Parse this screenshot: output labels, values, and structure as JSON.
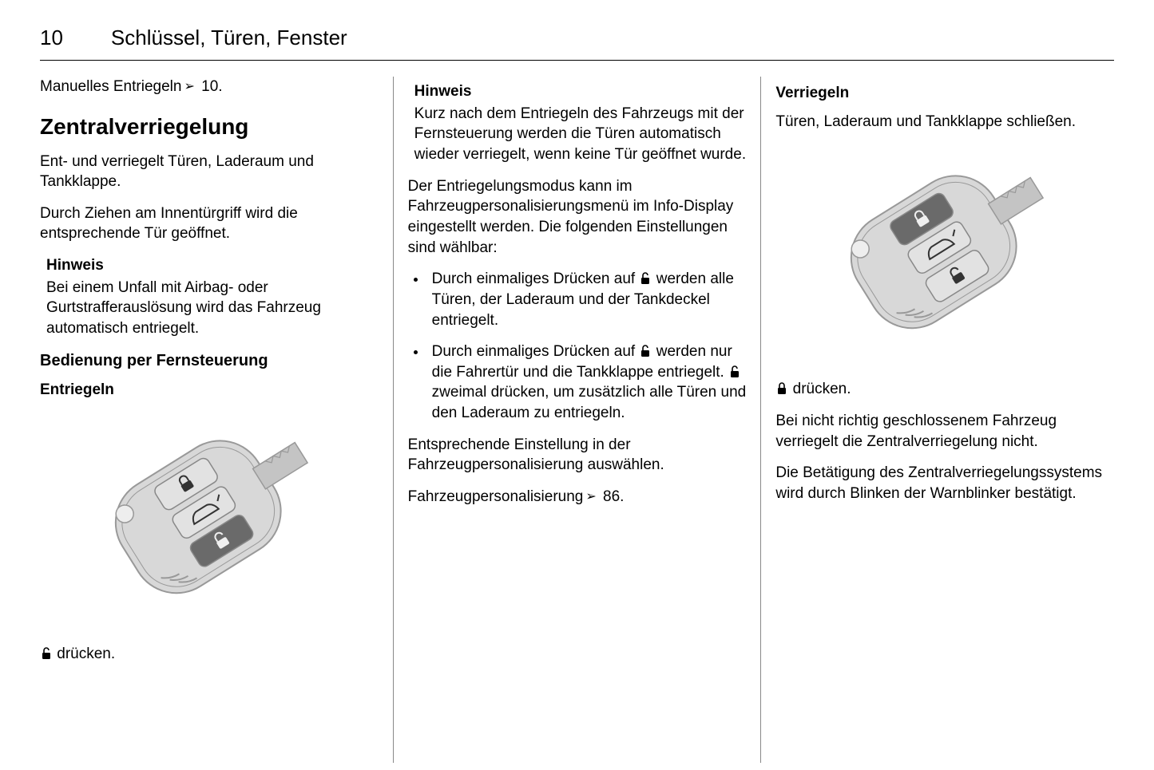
{
  "page_number": "10",
  "chapter_title": "Schlüssel, Türen, Fenster",
  "col1": {
    "manual_unlock": "Manuelles Entriegeln",
    "manual_unlock_ref": " 10.",
    "h2_central": "Zentralverriegelung",
    "p1": "Ent- und verriegelt Türen, Laderaum und Tankklappe.",
    "p2": "Durch Ziehen am Innentürgriff wird die entsprechende Tür geöffnet.",
    "hinweis_title": "Hinweis",
    "hinweis_body": "Bei einem Unfall mit Airbag- oder Gurtstrafferauslösung wird das Fahrzeug automatisch entriegelt.",
    "h3_remote": "Bedienung per Fernsteuerung",
    "h4_unlock": "Entriegeln",
    "press_unlock": " drücken."
  },
  "col2": {
    "hinweis_title": "Hinweis",
    "hinweis_body": "Kurz nach dem Entriegeln des Fahrzeugs mit der Fernsteuerung werden die Türen automatisch wieder verriegelt, wenn keine Tür geöffnet wurde.",
    "p1": "Der Entriegelungsmodus kann im Fahrzeugpersonalisierungsmenü im Info-Display eingestellt werden. Die folgenden Einstellungen sind wählbar:",
    "li1a": "Durch einmaliges Drücken auf ",
    "li1b": " werden alle Türen, der Laderaum und der Tankdeckel entriegelt.",
    "li2a": "Durch einmaliges Drücken auf ",
    "li2b": " werden nur die Fahrertür und die Tankklappe entriegelt. ",
    "li2c": " zweimal drücken, um zusätzlich alle Türen und den Laderaum zu entriegeln.",
    "p2": "Entsprechende Einstellung in der Fahrzeugpersonalisierung auswählen.",
    "p3a": "Fahrzeugpersonalisierung",
    "p3b": " 86."
  },
  "col3": {
    "h4_lock": "Verriegeln",
    "p1": "Türen, Laderaum und Tankklappe schließen.",
    "press_lock": " drücken.",
    "p2": "Bei nicht richtig geschlossenem Fahrzeug verriegelt die Zentralverriegelung nicht.",
    "p3": "Die Betätigung des Zentralverriegelungssystems wird durch Blinken der Warnblinker bestätigt."
  },
  "key_svg": {
    "body_fill": "#d8d8d8",
    "body_stroke": "#999999",
    "button_stroke": "#888888",
    "button_fill_light": "#e2e2e2",
    "button_fill_dark": "#6a6a6a",
    "icon_stroke_dark": "#333333",
    "icon_stroke_light": "#f0f0f0",
    "blade_fill": "#c4c4c4"
  }
}
